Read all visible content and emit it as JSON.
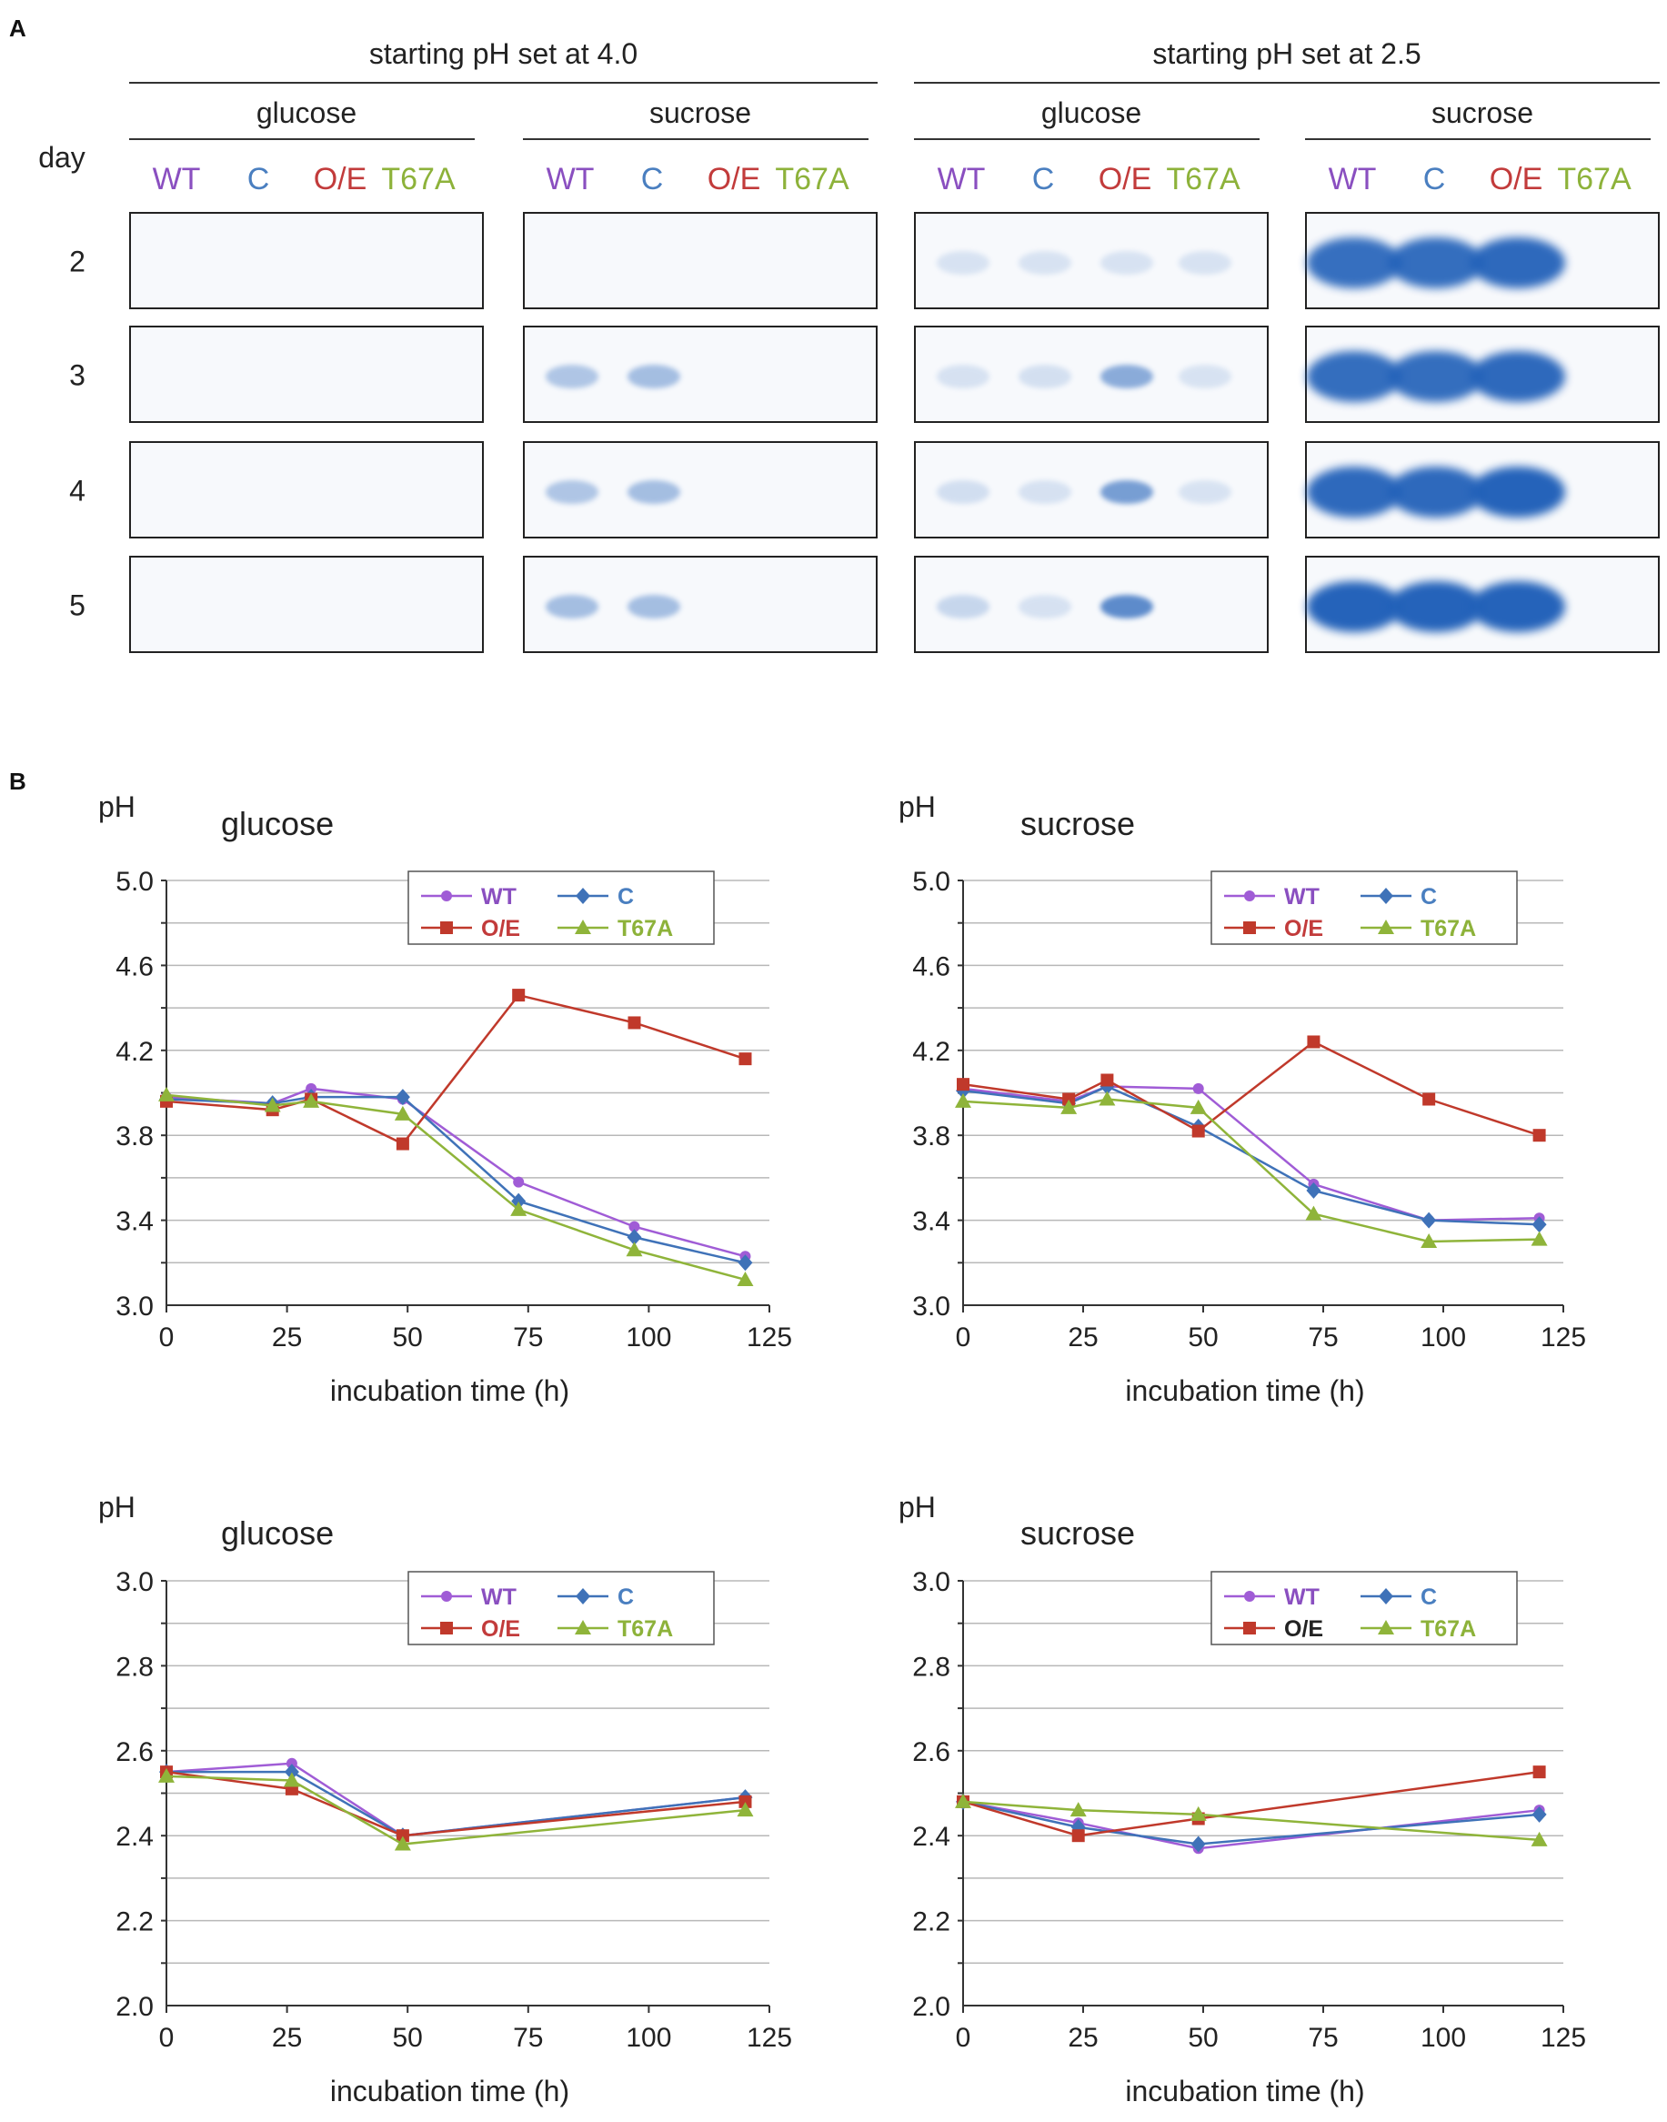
{
  "panel_labels": {
    "a": "A",
    "b": "B"
  },
  "panel_a": {
    "day_header": "day",
    "days": [
      "2",
      "3",
      "4",
      "5"
    ],
    "conditions": [
      {
        "title": "starting pH set at 4.0",
        "sugars": [
          "glucose",
          "sucrose"
        ]
      },
      {
        "title": "starting pH set at 2.5",
        "sugars": [
          "glucose",
          "sucrose"
        ]
      }
    ],
    "strains": [
      {
        "name": "WT",
        "color": "#8a4fc0"
      },
      {
        "name": "C",
        "color": "#4a7fc0"
      },
      {
        "name": "O/E",
        "color": "#c23b3b"
      },
      {
        "name": "T67A",
        "color": "#8db23a"
      }
    ],
    "band_color": "#1f5fb8",
    "band_intensity_note": "relative band intensity 0-1; panels ordered [pH4.0 glucose, pH4.0 sucrose, pH2.5 glucose, pH2.5 sucrose]; rows = days, cols = strains",
    "band_intensity": [
      [
        [
          0,
          0,
          0,
          0
        ],
        [
          0,
          0,
          0,
          0
        ],
        [
          0,
          0,
          0,
          0
        ],
        [
          0,
          0,
          0,
          0
        ]
      ],
      [
        [
          0,
          0,
          0,
          0
        ],
        [
          0.25,
          0.3,
          0,
          0
        ],
        [
          0.25,
          0.3,
          0,
          0
        ],
        [
          0.3,
          0.3,
          0,
          0
        ]
      ],
      [
        [
          0.02,
          0.02,
          0.02,
          0.02
        ],
        [
          0.03,
          0.05,
          0.45,
          0.02
        ],
        [
          0.06,
          0.04,
          0.55,
          0.02
        ],
        [
          0.12,
          0.04,
          0.7,
          0
        ]
      ],
      [
        [
          0.9,
          0.92,
          0.95,
          0
        ],
        [
          0.92,
          0.92,
          0.95,
          0
        ],
        [
          0.95,
          0.95,
          1.0,
          0
        ],
        [
          1.0,
          1.0,
          1.0,
          0
        ]
      ]
    ]
  },
  "chart_data": [
    {
      "type": "line",
      "title": "glucose",
      "ylabel": "pH",
      "xlabel": "incubation time (h)",
      "xlim": [
        0,
        125
      ],
      "xticks": [
        0,
        25,
        50,
        75,
        100,
        125
      ],
      "ylim": [
        3.0,
        5.0
      ],
      "yticks": [
        "3.0",
        "3.4",
        "3.8",
        "4.2",
        "4.6",
        "5.0"
      ],
      "ygrid_step": 0.2,
      "legend_position": "top-right",
      "series": [
        {
          "name": "WT",
          "color": "#a05cd6",
          "marker": "circle",
          "label_color": "#8a4fc0",
          "x": [
            0,
            22,
            30,
            49,
            73,
            97,
            120
          ],
          "y": [
            3.98,
            3.95,
            4.02,
            3.97,
            3.58,
            3.37,
            3.23
          ]
        },
        {
          "name": "C",
          "color": "#3f72b8",
          "marker": "diamond",
          "label_color": "#4a7fc0",
          "x": [
            0,
            22,
            30,
            49,
            73,
            97,
            120
          ],
          "y": [
            3.97,
            3.95,
            3.98,
            3.98,
            3.49,
            3.32,
            3.2
          ]
        },
        {
          "name": "O/E",
          "color": "#c0392b",
          "marker": "square",
          "label_color": "#c23b3b",
          "x": [
            0,
            22,
            30,
            49,
            73,
            97,
            120
          ],
          "y": [
            3.96,
            3.92,
            3.97,
            3.76,
            4.46,
            4.33,
            4.16
          ]
        },
        {
          "name": "T67A",
          "color": "#8fb43a",
          "marker": "triangle",
          "label_color": "#8db23a",
          "x": [
            0,
            22,
            30,
            49,
            73,
            97,
            120
          ],
          "y": [
            3.99,
            3.94,
            3.96,
            3.9,
            3.45,
            3.26,
            3.12
          ]
        }
      ]
    },
    {
      "type": "line",
      "title": "sucrose",
      "ylabel": "pH",
      "xlabel": "incubation time (h)",
      "xlim": [
        0,
        125
      ],
      "xticks": [
        0,
        25,
        50,
        75,
        100,
        125
      ],
      "ylim": [
        3.0,
        5.0
      ],
      "yticks": [
        "3.0",
        "3.4",
        "3.8",
        "4.2",
        "4.6",
        "5.0"
      ],
      "ygrid_step": 0.2,
      "legend_position": "top-right",
      "series": [
        {
          "name": "WT",
          "color": "#a05cd6",
          "marker": "circle",
          "label_color": "#8a4fc0",
          "x": [
            0,
            22,
            30,
            49,
            73,
            97,
            120
          ],
          "y": [
            4.02,
            3.96,
            4.03,
            4.02,
            3.57,
            3.4,
            3.41
          ]
        },
        {
          "name": "C",
          "color": "#3f72b8",
          "marker": "diamond",
          "label_color": "#4a7fc0",
          "x": [
            0,
            22,
            30,
            49,
            73,
            97,
            120
          ],
          "y": [
            4.01,
            3.95,
            4.03,
            3.84,
            3.54,
            3.4,
            3.38
          ]
        },
        {
          "name": "O/E",
          "color": "#c0392b",
          "marker": "square",
          "label_color": "#c23b3b",
          "x": [
            0,
            22,
            30,
            49,
            73,
            97,
            120
          ],
          "y": [
            4.04,
            3.97,
            4.06,
            3.82,
            4.24,
            3.97,
            3.8
          ]
        },
        {
          "name": "T67A",
          "color": "#8fb43a",
          "marker": "triangle",
          "label_color": "#8db23a",
          "x": [
            0,
            22,
            30,
            49,
            73,
            97,
            120
          ],
          "y": [
            3.96,
            3.93,
            3.97,
            3.93,
            3.43,
            3.3,
            3.31
          ]
        }
      ]
    },
    {
      "type": "line",
      "title": "glucose",
      "ylabel": "pH",
      "xlabel": "incubation time (h)",
      "xlim": [
        0,
        125
      ],
      "xticks": [
        0,
        25,
        50,
        75,
        100,
        125
      ],
      "ylim": [
        2.0,
        3.0
      ],
      "yticks": [
        "2.0",
        "2.2",
        "2.4",
        "2.6",
        "2.8",
        "3.0"
      ],
      "ygrid_step": 0.1,
      "legend_position": "top-right",
      "series": [
        {
          "name": "WT",
          "color": "#a05cd6",
          "marker": "circle",
          "label_color": "#8a4fc0",
          "x": [
            0,
            26,
            49,
            120
          ],
          "y": [
            2.55,
            2.57,
            2.4,
            2.49
          ]
        },
        {
          "name": "C",
          "color": "#3f72b8",
          "marker": "diamond",
          "label_color": "#4a7fc0",
          "x": [
            0,
            26,
            49,
            120
          ],
          "y": [
            2.55,
            2.55,
            2.4,
            2.49
          ]
        },
        {
          "name": "O/E",
          "color": "#c0392b",
          "marker": "square",
          "label_color": "#c23b3b",
          "x": [
            0,
            26,
            49,
            120
          ],
          "y": [
            2.55,
            2.51,
            2.4,
            2.48
          ]
        },
        {
          "name": "T67A",
          "color": "#8fb43a",
          "marker": "triangle",
          "label_color": "#8db23a",
          "x": [
            0,
            26,
            49,
            120
          ],
          "y": [
            2.54,
            2.53,
            2.38,
            2.46
          ]
        }
      ]
    },
    {
      "type": "line",
      "title": "sucrose",
      "ylabel": "pH",
      "xlabel": "incubation time (h)",
      "xlim": [
        0,
        125
      ],
      "xticks": [
        0,
        25,
        50,
        75,
        100,
        125
      ],
      "ylim": [
        2.0,
        3.0
      ],
      "yticks": [
        "2.0",
        "2.2",
        "2.4",
        "2.6",
        "2.8",
        "3.0"
      ],
      "ygrid_step": 0.1,
      "legend_position": "top-right",
      "series": [
        {
          "name": "WT",
          "color": "#a05cd6",
          "marker": "circle",
          "label_color": "#8a4fc0",
          "x": [
            0,
            24,
            49,
            120
          ],
          "y": [
            2.48,
            2.43,
            2.37,
            2.46
          ]
        },
        {
          "name": "C",
          "color": "#3f72b8",
          "marker": "diamond",
          "label_color": "#4a7fc0",
          "x": [
            0,
            24,
            49,
            120
          ],
          "y": [
            2.48,
            2.42,
            2.38,
            2.45
          ]
        },
        {
          "name": "O/E",
          "color": "#c0392b",
          "marker": "square",
          "label_color": "#222222",
          "x": [
            0,
            24,
            49,
            120
          ],
          "y": [
            2.48,
            2.4,
            2.44,
            2.55
          ]
        },
        {
          "name": "T67A",
          "color": "#8fb43a",
          "marker": "triangle",
          "label_color": "#8db23a",
          "x": [
            0,
            24,
            49,
            120
          ],
          "y": [
            2.48,
            2.46,
            2.45,
            2.39
          ]
        }
      ]
    }
  ]
}
